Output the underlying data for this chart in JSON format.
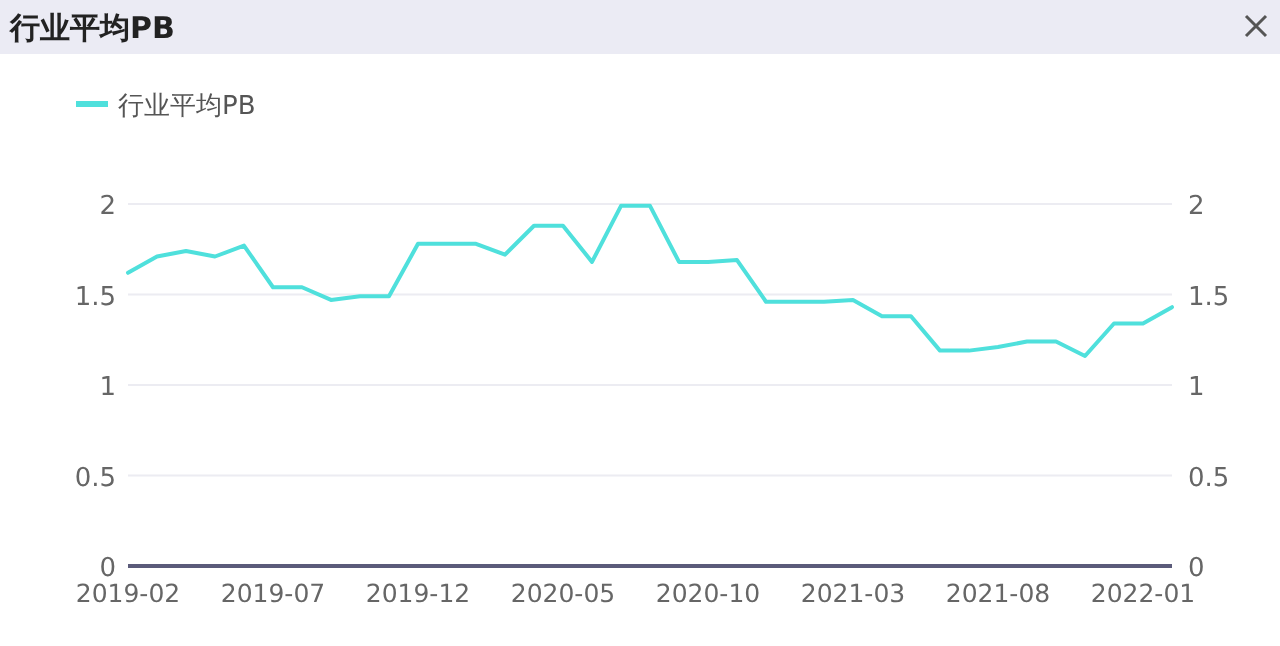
{
  "chart_data": {
    "type": "line",
    "title": "行业平均PB",
    "legend": "top left",
    "grid": "y",
    "line_style": "solid",
    "marker": "none",
    "x": [
      "2019-02",
      "2019-03",
      "2019-04",
      "2019-05",
      "2019-06",
      "2019-07",
      "2019-08",
      "2019-09",
      "2019-10",
      "2019-11",
      "2019-12",
      "2020-01",
      "2020-02",
      "2020-03",
      "2020-04",
      "2020-05",
      "2020-06",
      "2020-07",
      "2020-08",
      "2020-09",
      "2020-10",
      "2020-11",
      "2020-12",
      "2021-01",
      "2021-02",
      "2021-03",
      "2021-04",
      "2021-05",
      "2021-06",
      "2021-07",
      "2021-08",
      "2021-09",
      "2021-10",
      "2021-11",
      "2021-12",
      "2022-01",
      "2022-02"
    ],
    "series": [
      {
        "name": "行业平均PB",
        "color": "#4fe0dc",
        "values": [
          1.62,
          1.71,
          1.74,
          1.71,
          1.77,
          1.54,
          1.54,
          1.47,
          1.49,
          1.49,
          1.78,
          1.78,
          1.78,
          1.72,
          1.88,
          1.88,
          1.68,
          1.99,
          1.99,
          1.68,
          1.68,
          1.69,
          1.46,
          1.46,
          1.46,
          1.47,
          1.38,
          1.38,
          1.19,
          1.19,
          1.21,
          1.24,
          1.24,
          1.16,
          1.34,
          1.34,
          1.43
        ]
      }
    ],
    "xlim": [
      "2019-02",
      "2022-02"
    ],
    "xticks": [
      {
        "value": "2019-02",
        "label": "2019-02"
      },
      {
        "value": "2019-07",
        "label": "2019-07"
      },
      {
        "value": "2019-12",
        "label": "2019-12"
      },
      {
        "value": "2020-05",
        "label": "2020-05"
      },
      {
        "value": "2020-10",
        "label": "2020-10"
      },
      {
        "value": "2021-03",
        "label": "2021-03"
      },
      {
        "value": "2021-08",
        "label": "2021-08"
      },
      {
        "value": "2022-01",
        "label": "2022-01"
      }
    ],
    "ylim": [
      0,
      2
    ],
    "yticks": [
      0,
      0.5,
      1,
      1.5,
      2
    ],
    "y2lim": [
      0,
      2
    ],
    "y2ticks": [
      0,
      0.5,
      1,
      1.5,
      2
    ]
  }
}
